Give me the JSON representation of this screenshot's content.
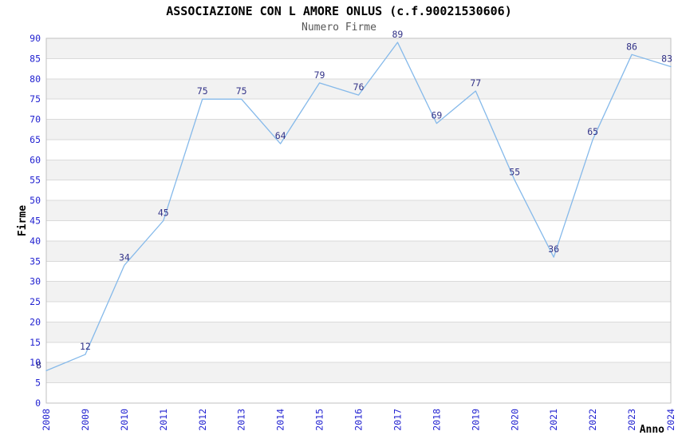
{
  "chart_data": {
    "type": "line",
    "title": "ASSOCIAZIONE CON L AMORE ONLUS (c.f.90021530606)",
    "subtitle": "Numero Firme",
    "xlabel": "Anno",
    "ylabel": "Firme",
    "x": [
      "2008",
      "2009",
      "2010",
      "2011",
      "2012",
      "2013",
      "2014",
      "2015",
      "2016",
      "2017",
      "2018",
      "2019",
      "2020",
      "2021",
      "2022",
      "2023",
      "2024"
    ],
    "values": [
      8,
      12,
      34,
      45,
      75,
      75,
      64,
      79,
      76,
      89,
      69,
      77,
      55,
      36,
      65,
      86,
      83
    ],
    "ylim": [
      0,
      90
    ],
    "ytick_step": 5,
    "grid": true,
    "band_alternating": true,
    "legend_position": "none",
    "colors": {
      "line": "#85B9EA",
      "data_label": "#333388",
      "tick_label": "#2323D1",
      "axis_label": "#000000",
      "title": "#000000",
      "subtitle": "#565656",
      "band": "#F2F2F2",
      "grid": "#DADADA",
      "border": "#C0C0C0",
      "background": "#FFFFFF"
    }
  }
}
